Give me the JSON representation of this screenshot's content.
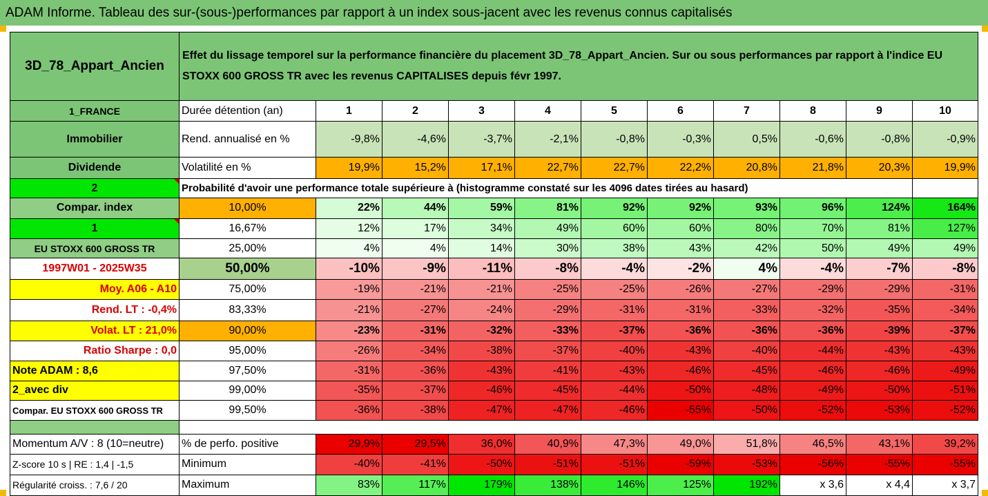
{
  "title": "ADAM Informe. Tableau des sur-(sous-)performances par rapport à un index sous-jacent avec les revenus connus capitalisés",
  "asset_name": "3D_78_Appart_Ancien",
  "description": "Effet du lissage temporel sur la performance financière du placement 3D_78_Appart_Ancien. Sur ou sous performances par rapport à l'indice EU STOXX 600 GROSS TR avec les revenus CAPITALISES depuis févr 1997.",
  "left": {
    "country": "1_FRANCE",
    "type": "Immobilier",
    "dividend": "Dividende",
    "index_num": "2",
    "compar_index": "Compar. index",
    "one": "1",
    "index_name": "EU STOXX 600 GROSS TR",
    "period": "1997W01 - 2025W35",
    "moy": "Moy. A06 - A10",
    "rend_lt": "Rend. LT :   -0,4%",
    "volat_lt": "Volat. LT :   21,0%",
    "sharpe": "Ratio Sharpe :   0,0",
    "note": "Note ADAM : 8,6",
    "avec_div": "2_avec div",
    "compar_full": "Compar. EU STOXX 600 GROSS TR",
    "momentum": "Momentum A/V : 8 (10=neutre)",
    "zscore": "Z-score 10 s  | RE : 1,4  | -1,5",
    "regularite": "Régularité croiss. : 7,6 / 20"
  },
  "row_labels": {
    "duree": "Durée détention (an)",
    "rend": "Rend. annualisé en %",
    "vol": "Volatilité en %",
    "proba": "Probabilité d'avoir une performance totale supérieure à (histogramme constaté sur les 4096 dates tirées au hasard)",
    "perf_pos": "% de perfo. positive",
    "minimum": "Minimum",
    "maximum": "Maximum"
  },
  "years": [
    "1",
    "2",
    "3",
    "4",
    "5",
    "6",
    "7",
    "8",
    "9",
    "10"
  ],
  "rend": [
    "-9,8%",
    "-4,6%",
    "-3,7%",
    "-2,1%",
    "-0,8%",
    "-0,3%",
    "0,5%",
    "-0,6%",
    "-0,8%",
    "-0,9%"
  ],
  "vol": [
    "19,9%",
    "15,2%",
    "17,1%",
    "22,7%",
    "22,7%",
    "22,2%",
    "20,8%",
    "21,8%",
    "20,3%",
    "19,9%"
  ],
  "quantiles": [
    {
      "p": "10,00%",
      "v": [
        "22%",
        "44%",
        "59%",
        "81%",
        "92%",
        "92%",
        "93%",
        "96%",
        "124%",
        "164%"
      ]
    },
    {
      "p": "16,67%",
      "v": [
        "12%",
        "17%",
        "34%",
        "49%",
        "60%",
        "60%",
        "80%",
        "70%",
        "81%",
        "127%"
      ]
    },
    {
      "p": "25,00%",
      "v": [
        "4%",
        "4%",
        "14%",
        "30%",
        "38%",
        "43%",
        "42%",
        "50%",
        "49%",
        "49%"
      ]
    },
    {
      "p": "50,00%",
      "v": [
        "-10%",
        "-9%",
        "-11%",
        "-8%",
        "-4%",
        "-2%",
        "4%",
        "-4%",
        "-7%",
        "-8%"
      ]
    },
    {
      "p": "75,00%",
      "v": [
        "-19%",
        "-21%",
        "-21%",
        "-25%",
        "-25%",
        "-26%",
        "-27%",
        "-29%",
        "-29%",
        "-31%"
      ]
    },
    {
      "p": "83,33%",
      "v": [
        "-21%",
        "-27%",
        "-24%",
        "-29%",
        "-31%",
        "-31%",
        "-33%",
        "-32%",
        "-35%",
        "-34%"
      ]
    },
    {
      "p": "90,00%",
      "v": [
        "-23%",
        "-31%",
        "-32%",
        "-33%",
        "-37%",
        "-36%",
        "-36%",
        "-36%",
        "-39%",
        "-37%"
      ]
    },
    {
      "p": "95,00%",
      "v": [
        "-26%",
        "-34%",
        "-38%",
        "-37%",
        "-40%",
        "-43%",
        "-40%",
        "-44%",
        "-43%",
        "-43%"
      ]
    },
    {
      "p": "97,50%",
      "v": [
        "-31%",
        "-36%",
        "-43%",
        "-41%",
        "-43%",
        "-46%",
        "-45%",
        "-46%",
        "-46%",
        "-49%"
      ]
    },
    {
      "p": "99,00%",
      "v": [
        "-35%",
        "-37%",
        "-46%",
        "-45%",
        "-44%",
        "-50%",
        "-48%",
        "-49%",
        "-50%",
        "-51%"
      ]
    },
    {
      "p": "99,50%",
      "v": [
        "-36%",
        "-38%",
        "-47%",
        "-47%",
        "-46%",
        "-55%",
        "-50%",
        "-52%",
        "-53%",
        "-52%"
      ]
    }
  ],
  "perf_pos": [
    "29,9%",
    "29,5%",
    "36,0%",
    "40,9%",
    "47,3%",
    "49,0%",
    "51,8%",
    "46,5%",
    "43,1%",
    "39,2%"
  ],
  "minimum": [
    "-40%",
    "-41%",
    "-50%",
    "-51%",
    "-51%",
    "-59%",
    "-53%",
    "-56%",
    "-55%",
    "-55%"
  ],
  "maximum": [
    "83%",
    "117%",
    "179%",
    "138%",
    "146%",
    "125%",
    "192%",
    "x 3,6",
    "x 4,4",
    "x 3,7"
  ],
  "colors": {
    "header_green": "#7cc576",
    "bright_green": "#00e600",
    "yellow": "#ffff00",
    "orange": "#ffb000",
    "red_text": "#d90000"
  }
}
